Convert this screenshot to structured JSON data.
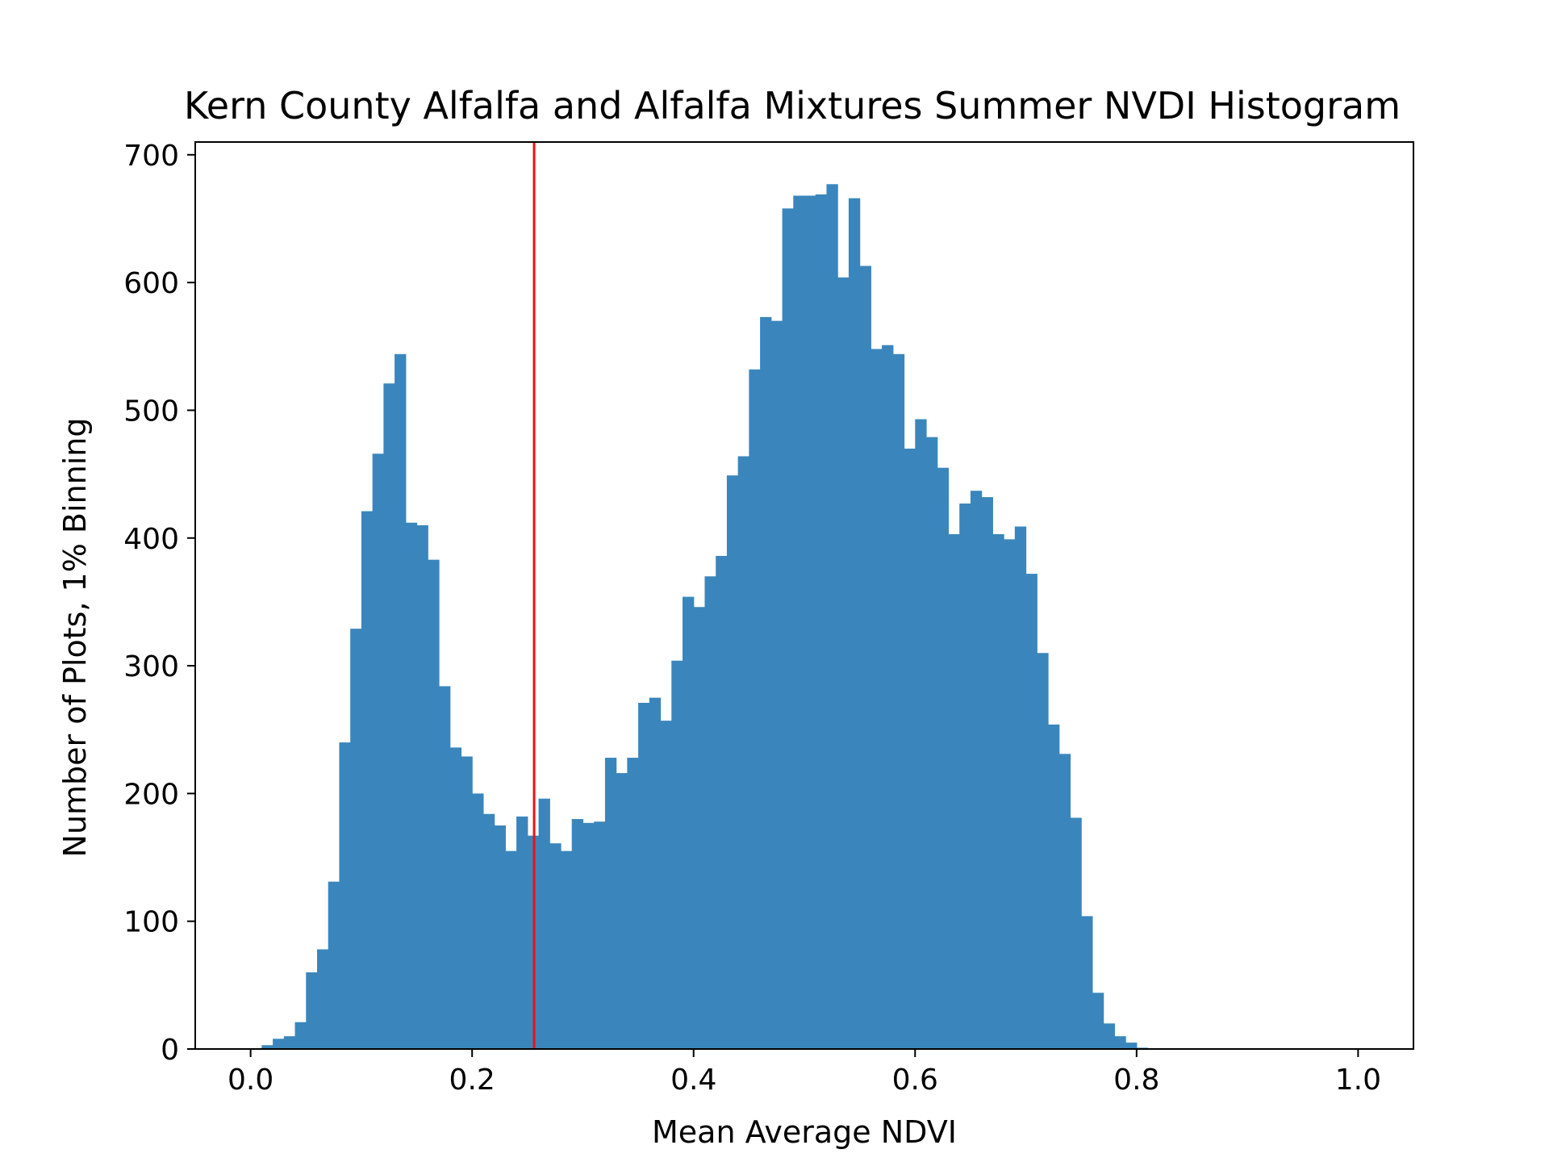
{
  "chart_data": {
    "type": "bar",
    "title": "Kern County Alfalfa and Alfalfa Mixtures Summer NVDI Histogram",
    "xlabel": "Mean Average NDVI",
    "ylabel": "Number of Plots, 1% Binning",
    "xlim": [
      -0.05,
      1.05
    ],
    "ylim": [
      0,
      700
    ],
    "bin_width": 0.01,
    "bin_start": 0.0,
    "x_ticks": [
      "0.0",
      "0.2",
      "0.4",
      "0.6",
      "0.8",
      "1.0"
    ],
    "y_ticks": [
      "0",
      "100",
      "200",
      "300",
      "400",
      "500",
      "600",
      "700"
    ],
    "bar_color": "#3a86bc",
    "threshold_line": {
      "x": 0.256,
      "color": "#ee1111"
    },
    "grid": false,
    "legend": "none",
    "values": [
      0,
      3,
      8,
      10,
      21,
      60,
      78,
      131,
      240,
      329,
      421,
      466,
      521,
      544,
      412,
      410,
      383,
      284,
      236,
      229,
      200,
      184,
      175,
      155,
      182,
      167,
      196,
      161,
      155,
      180,
      177,
      178,
      228,
      216,
      228,
      271,
      275,
      257,
      304,
      354,
      346,
      370,
      386,
      449,
      464,
      532,
      573,
      570,
      658,
      668,
      668,
      669,
      677,
      604,
      666,
      613,
      548,
      551,
      544,
      470,
      493,
      479,
      455,
      403,
      427,
      437,
      432,
      403,
      399,
      409,
      372,
      310,
      254,
      231,
      181,
      104,
      44,
      20,
      10,
      5,
      1,
      0,
      0,
      0,
      0,
      0,
      0,
      0,
      0,
      0,
      0,
      0,
      0,
      0,
      0,
      0,
      0,
      0,
      0,
      0
    ]
  }
}
